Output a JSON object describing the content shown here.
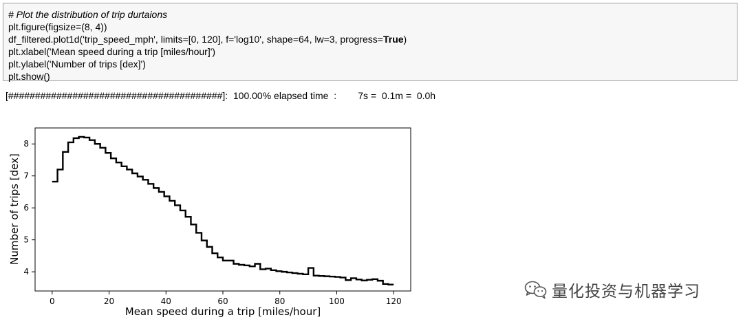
{
  "code": {
    "comment": "# Plot the distribution of trip durtaions",
    "line2": "plt.figure(figsize=(8, 4))",
    "line3_prefix": "df_filtered.plot1d('trip_speed_mph', limits=[0, 120], f='log10', shape=64, lw=3, progress=",
    "line3_bold": "True",
    "line3_suffix": ")",
    "line4": "plt.xlabel('Mean speed during a trip [miles/hour]')",
    "line5": "plt.ylabel('Number of trips [dex]')",
    "line6": "plt.show()"
  },
  "output": {
    "progress_line": "[########################################]:  100.00% elapsed time  :        7s =  0.1m =  0.0h"
  },
  "watermark": {
    "text": "量化投资与机器学习",
    "icon": "wechat-icon"
  },
  "chart_data": {
    "type": "line",
    "xlabel": "Mean speed during a trip [miles/hour]",
    "ylabel": "Number of trips [dex]",
    "xlim": [
      -6,
      126
    ],
    "ylim": [
      3.4,
      8.5
    ],
    "xticks": [
      0,
      20,
      40,
      60,
      80,
      100,
      120
    ],
    "yticks": [
      4,
      5,
      6,
      7,
      8
    ],
    "grid": false,
    "line_color": "#000000",
    "bin_edges": [
      0,
      1.875,
      3.75,
      5.625,
      7.5,
      9.375,
      11.25,
      13.125,
      15,
      16.875,
      18.75,
      20.625,
      22.5,
      24.375,
      26.25,
      28.125,
      30,
      31.875,
      33.75,
      35.625,
      37.5,
      39.375,
      41.25,
      43.125,
      45,
      46.875,
      48.75,
      50.625,
      52.5,
      54.375,
      56.25,
      58.125,
      60,
      61.875,
      63.75,
      65.625,
      67.5,
      69.375,
      71.25,
      73.125,
      75,
      76.875,
      78.75,
      80.625,
      82.5,
      84.375,
      86.25,
      88.125,
      90,
      91.875,
      93.75,
      95.625,
      97.5,
      99.375,
      101.25,
      103.125,
      105,
      106.875,
      108.75,
      110.625,
      112.5,
      114.375,
      116.25,
      118.125,
      120
    ],
    "values": [
      6.82,
      7.2,
      7.75,
      8.05,
      8.18,
      8.22,
      8.2,
      8.12,
      8.0,
      7.88,
      7.72,
      7.55,
      7.42,
      7.3,
      7.2,
      7.08,
      6.98,
      6.88,
      6.75,
      6.62,
      6.5,
      6.36,
      6.22,
      6.08,
      5.92,
      5.72,
      5.48,
      5.22,
      4.98,
      4.78,
      4.58,
      4.45,
      4.35,
      4.35,
      4.25,
      4.22,
      4.2,
      4.17,
      4.25,
      4.08,
      4.1,
      4.05,
      4.02,
      4.0,
      3.98,
      3.96,
      3.94,
      3.92,
      4.12,
      3.88,
      3.87,
      3.86,
      3.85,
      3.84,
      3.82,
      3.74,
      3.8,
      3.76,
      3.73,
      3.75,
      3.77,
      3.72,
      3.62,
      3.6
    ]
  }
}
